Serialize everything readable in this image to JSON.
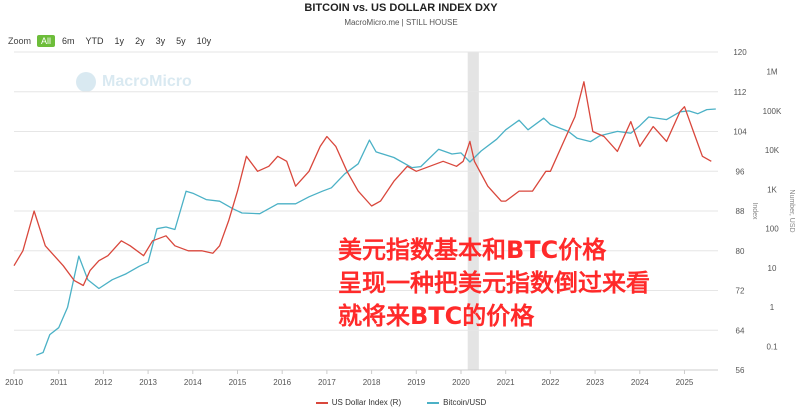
{
  "header": {
    "title": "BITCOIN vs. US DOLLAR INDEX DXY",
    "subtitle": "MacroMicro.me | STILL HOUSE"
  },
  "zoom": {
    "label": "Zoom",
    "options": [
      "All",
      "6m",
      "YTD",
      "1y",
      "2y",
      "3y",
      "5y",
      "10y"
    ],
    "selected": "All"
  },
  "watermark": "MacroMicro",
  "overlay_lines": [
    "美元指数基本和BTC价格",
    "呈现一种把美元指数倒过来看",
    "就将来BTC的价格"
  ],
  "colors": {
    "dxy": "#d9473c",
    "btc": "#4bb1c6",
    "grid": "#e6e6e6",
    "shade": "#d8d8d8",
    "overlay": "#ff2a2a",
    "zoom_active": "#6dbd3a"
  },
  "chart_data": {
    "type": "line",
    "title": "BITCOIN vs. US DOLLAR INDEX DXY",
    "x_ticks": [
      "2010",
      "2011",
      "2012",
      "2013",
      "2014",
      "2015",
      "2016",
      "2017",
      "2018",
      "2019",
      "2020",
      "2021",
      "2022",
      "2023",
      "2024",
      "2025"
    ],
    "xlim": [
      2010,
      2025.75
    ],
    "y_left": {
      "label": "Index",
      "ticks": [
        "56",
        "64",
        "72",
        "80",
        "88",
        "96",
        "104",
        "112",
        "120"
      ],
      "range": [
        56,
        120
      ]
    },
    "y_right": {
      "label": "Number, USD",
      "ticks": [
        "0.1",
        "1",
        "10",
        "100",
        "1K",
        "10K",
        "100K",
        "1M"
      ],
      "log_range": [
        -1.6,
        6.5
      ]
    },
    "shaded_region": {
      "from": 2020.15,
      "to": 2020.4
    },
    "legend_position": "bottom",
    "series": [
      {
        "name": "US Dollar Index (R)",
        "axis": "left",
        "points": [
          [
            2010.0,
            77
          ],
          [
            2010.2,
            80
          ],
          [
            2010.45,
            88
          ],
          [
            2010.7,
            81
          ],
          [
            2010.9,
            79
          ],
          [
            2011.1,
            77
          ],
          [
            2011.35,
            74
          ],
          [
            2011.55,
            73
          ],
          [
            2011.7,
            76
          ],
          [
            2011.9,
            78
          ],
          [
            2012.1,
            79
          ],
          [
            2012.4,
            82
          ],
          [
            2012.6,
            81
          ],
          [
            2012.9,
            79
          ],
          [
            2013.1,
            82
          ],
          [
            2013.4,
            83
          ],
          [
            2013.6,
            81
          ],
          [
            2013.9,
            80
          ],
          [
            2014.2,
            80
          ],
          [
            2014.45,
            79.5
          ],
          [
            2014.6,
            81
          ],
          [
            2014.8,
            86
          ],
          [
            2015.0,
            92
          ],
          [
            2015.2,
            99
          ],
          [
            2015.45,
            96
          ],
          [
            2015.7,
            97
          ],
          [
            2015.9,
            99
          ],
          [
            2016.1,
            98
          ],
          [
            2016.3,
            93
          ],
          [
            2016.6,
            96
          ],
          [
            2016.85,
            101
          ],
          [
            2017.0,
            103
          ],
          [
            2017.2,
            101
          ],
          [
            2017.45,
            96
          ],
          [
            2017.7,
            92
          ],
          [
            2018.0,
            89
          ],
          [
            2018.2,
            90
          ],
          [
            2018.5,
            94
          ],
          [
            2018.8,
            97
          ],
          [
            2019.0,
            96
          ],
          [
            2019.3,
            97
          ],
          [
            2019.6,
            98
          ],
          [
            2019.9,
            97
          ],
          [
            2020.05,
            98
          ],
          [
            2020.2,
            102
          ],
          [
            2020.3,
            98
          ],
          [
            2020.6,
            93
          ],
          [
            2020.9,
            90
          ],
          [
            2021.0,
            90
          ],
          [
            2021.3,
            92
          ],
          [
            2021.6,
            92
          ],
          [
            2021.9,
            96
          ],
          [
            2022.0,
            96
          ],
          [
            2022.3,
            102
          ],
          [
            2022.55,
            107
          ],
          [
            2022.75,
            114
          ],
          [
            2022.95,
            104
          ],
          [
            2023.2,
            103
          ],
          [
            2023.5,
            100
          ],
          [
            2023.8,
            106
          ],
          [
            2024.0,
            101
          ],
          [
            2024.3,
            105
          ],
          [
            2024.6,
            102
          ],
          [
            2024.9,
            108
          ],
          [
            2025.0,
            109
          ],
          [
            2025.2,
            104
          ],
          [
            2025.4,
            99
          ],
          [
            2025.6,
            98
          ]
        ]
      },
      {
        "name": "Bitcoin/USD",
        "axis": "right",
        "points": [
          [
            2010.5,
            0.06
          ],
          [
            2010.65,
            0.07
          ],
          [
            2010.8,
            0.2
          ],
          [
            2011.0,
            0.3
          ],
          [
            2011.2,
            1
          ],
          [
            2011.45,
            20
          ],
          [
            2011.65,
            5
          ],
          [
            2011.9,
            3
          ],
          [
            2012.2,
            5
          ],
          [
            2012.5,
            7
          ],
          [
            2012.8,
            11
          ],
          [
            2013.0,
            14
          ],
          [
            2013.2,
            100
          ],
          [
            2013.4,
            110
          ],
          [
            2013.6,
            95
          ],
          [
            2013.85,
            900
          ],
          [
            2014.0,
            800
          ],
          [
            2014.3,
            550
          ],
          [
            2014.6,
            500
          ],
          [
            2014.9,
            320
          ],
          [
            2015.1,
            250
          ],
          [
            2015.5,
            240
          ],
          [
            2015.9,
            430
          ],
          [
            2016.3,
            430
          ],
          [
            2016.6,
            650
          ],
          [
            2016.9,
            900
          ],
          [
            2017.1,
            1100
          ],
          [
            2017.4,
            2500
          ],
          [
            2017.7,
            4500
          ],
          [
            2017.95,
            18000
          ],
          [
            2018.1,
            9000
          ],
          [
            2018.5,
            6500
          ],
          [
            2018.9,
            3600
          ],
          [
            2019.1,
            3800
          ],
          [
            2019.5,
            10500
          ],
          [
            2019.8,
            8000
          ],
          [
            2020.0,
            8500
          ],
          [
            2020.2,
            5000
          ],
          [
            2020.45,
            9500
          ],
          [
            2020.8,
            19000
          ],
          [
            2021.0,
            33000
          ],
          [
            2021.3,
            58000
          ],
          [
            2021.5,
            33000
          ],
          [
            2021.85,
            65000
          ],
          [
            2022.0,
            45000
          ],
          [
            2022.4,
            30000
          ],
          [
            2022.6,
            20000
          ],
          [
            2022.9,
            16500
          ],
          [
            2023.1,
            23000
          ],
          [
            2023.5,
            30000
          ],
          [
            2023.8,
            27000
          ],
          [
            2024.0,
            42000
          ],
          [
            2024.2,
            70000
          ],
          [
            2024.6,
            60000
          ],
          [
            2024.9,
            95000
          ],
          [
            2025.1,
            100000
          ],
          [
            2025.3,
            85000
          ],
          [
            2025.5,
            108000
          ],
          [
            2025.7,
            112000
          ]
        ]
      }
    ]
  }
}
